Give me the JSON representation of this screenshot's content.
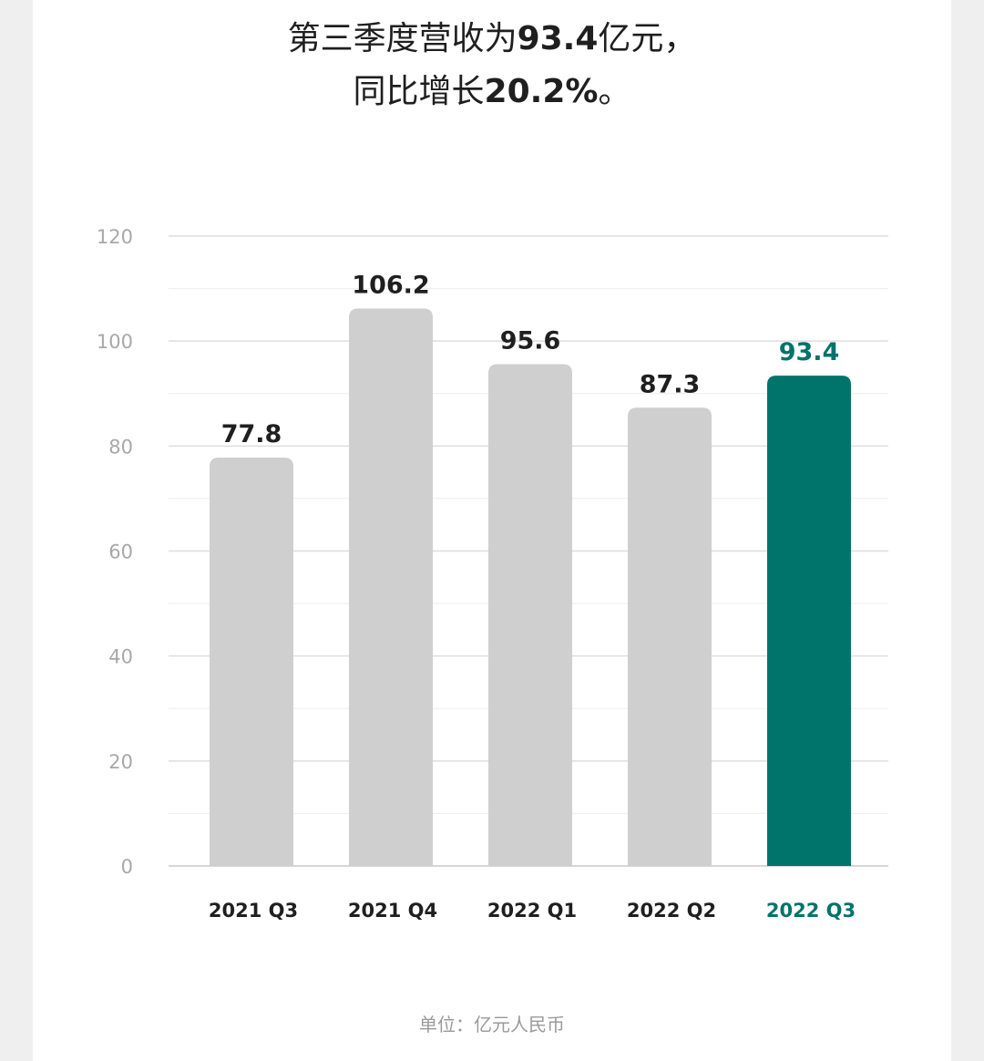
{
  "title": {
    "line1_prefix": "第三季度营收为",
    "line1_value": "93.4",
    "line1_suffix": "亿元，",
    "line2_prefix": "同比增长",
    "line2_value": "20.2%",
    "line2_suffix": "。"
  },
  "footer": {
    "unit_note": "单位：亿元人民币"
  },
  "colors": {
    "bar_default": "#cfcfcf",
    "bar_highlight": "#00736b",
    "grid": "#dedede",
    "text_dark": "#1f1f1f"
  },
  "chart_data": {
    "type": "bar",
    "categories": [
      "2021 Q3",
      "2021 Q4",
      "2022 Q1",
      "2022 Q2",
      "2022 Q3"
    ],
    "values": [
      77.8,
      106.2,
      95.6,
      87.3,
      93.4
    ],
    "value_labels": [
      "77.8",
      "106.2",
      "95.6",
      "87.3",
      "93.4"
    ],
    "highlight_index": 4,
    "ylim": [
      0,
      120
    ],
    "yticks": [
      0,
      20,
      40,
      60,
      80,
      100,
      120
    ],
    "grid": true,
    "xlabel": "",
    "ylabel": ""
  }
}
